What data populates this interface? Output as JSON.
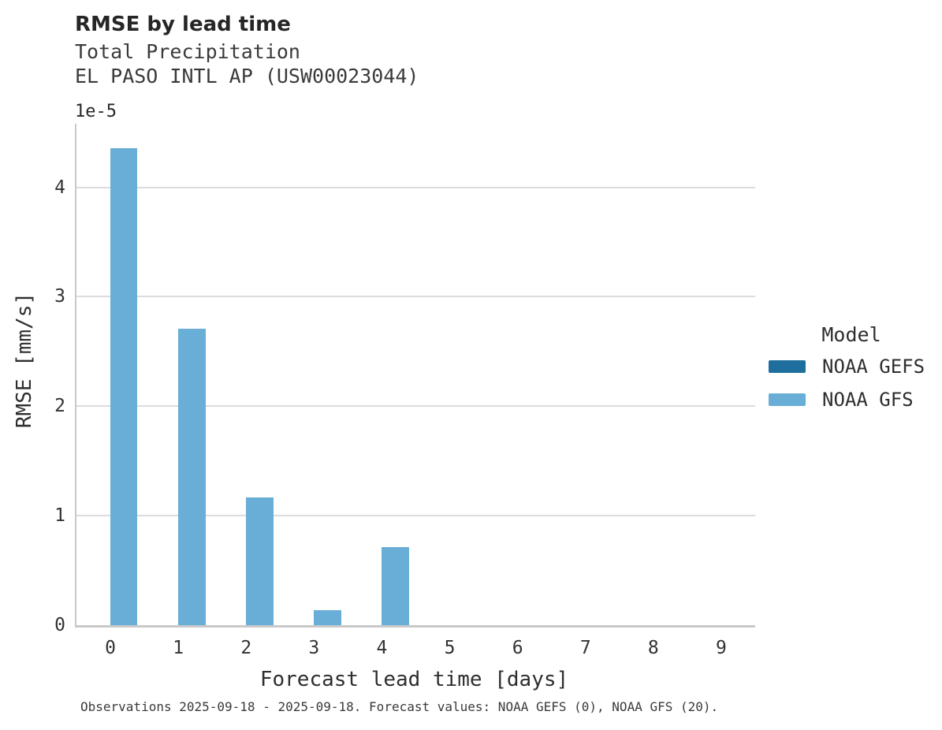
{
  "header": {
    "title": "RMSE by lead time",
    "subtitle_line1": "Total Precipitation",
    "subtitle_line2": "EL PASO INTL AP (USW00023044)"
  },
  "chart_data": {
    "type": "bar",
    "title": "RMSE by lead time",
    "subtitle_lines": [
      "Total Precipitation",
      "EL PASO INTL AP (USW00023044)"
    ],
    "xlabel": "Forecast lead time [days]",
    "ylabel": "RMSE [mm/s]",
    "y_offset_label": "1e-5",
    "value_units": "1e-5 mm/s",
    "categories": [
      "0",
      "1",
      "2",
      "3",
      "4",
      "5",
      "6",
      "7",
      "8",
      "9"
    ],
    "series": [
      {
        "name": "NOAA GEFS",
        "color": "#1f6f9e",
        "values": [
          0,
          0,
          0,
          0,
          0,
          0,
          0,
          0,
          0,
          0
        ]
      },
      {
        "name": "NOAA GFS",
        "color": "#69aed7",
        "values": [
          4.36,
          2.71,
          1.17,
          0.14,
          0.71,
          0,
          0,
          0,
          0,
          0
        ]
      }
    ],
    "yticks": [
      0,
      1,
      2,
      3,
      4
    ],
    "ylim": [
      0,
      4.58
    ],
    "grid": "horizontal",
    "legend_title": "Model",
    "legend_position": "right",
    "colors": {
      "grid": "#dcdcdc",
      "spine": "#c9c9c9",
      "noaa_gefs": "#1f6f9e",
      "noaa_gfs": "#69aed7"
    }
  },
  "footer": {
    "caption": "Observations 2025-09-18 - 2025-09-18. Forecast values: NOAA GEFS (0), NOAA GFS (20)."
  }
}
